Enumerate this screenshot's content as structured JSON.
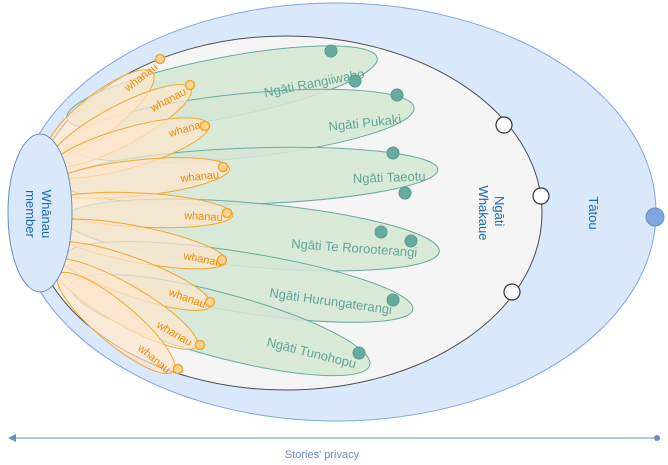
{
  "labels": {
    "tatou": "Tātou",
    "whakaue": "Ngāti Whakaue",
    "member": "Whānau member",
    "privacy": "Stories' privacy"
  },
  "hapu": [
    {
      "name": "Ngāti Rangiiwaho"
    },
    {
      "name": "Ngāti Pukaki"
    },
    {
      "name": "Ngāti Taeotu"
    },
    {
      "name": "Ngāti Te Rorooterangi"
    },
    {
      "name": "Ngāti Hurungaterangi"
    },
    {
      "name": "Ngāti Tunohopu"
    }
  ],
  "whanau": [
    {
      "label": "whanau"
    },
    {
      "label": "whanau"
    },
    {
      "label": "whanau"
    },
    {
      "label": "whanau"
    },
    {
      "label": "whanau"
    },
    {
      "label": "whanau"
    },
    {
      "label": "whanau"
    },
    {
      "label": "whanau"
    },
    {
      "label": "whanau"
    }
  ],
  "colors": {
    "outer_fill": "#dae8fc",
    "outer_stroke": "#7ea6e0",
    "middle_fill": "#f5f5f5",
    "middle_stroke": "#666666",
    "hapu_fill": "#d5e8d4",
    "hapu_stroke": "#67ab9f",
    "hapu_text": "#5fa59a",
    "whanau_fill": "#ffe6cc",
    "whanau_stroke": "#f0a830",
    "whanau_text": "#f08c00",
    "member_fill": "#dae8fc",
    "member_stroke": "#6c8ebf",
    "main_text": "#1a6bb0"
  }
}
